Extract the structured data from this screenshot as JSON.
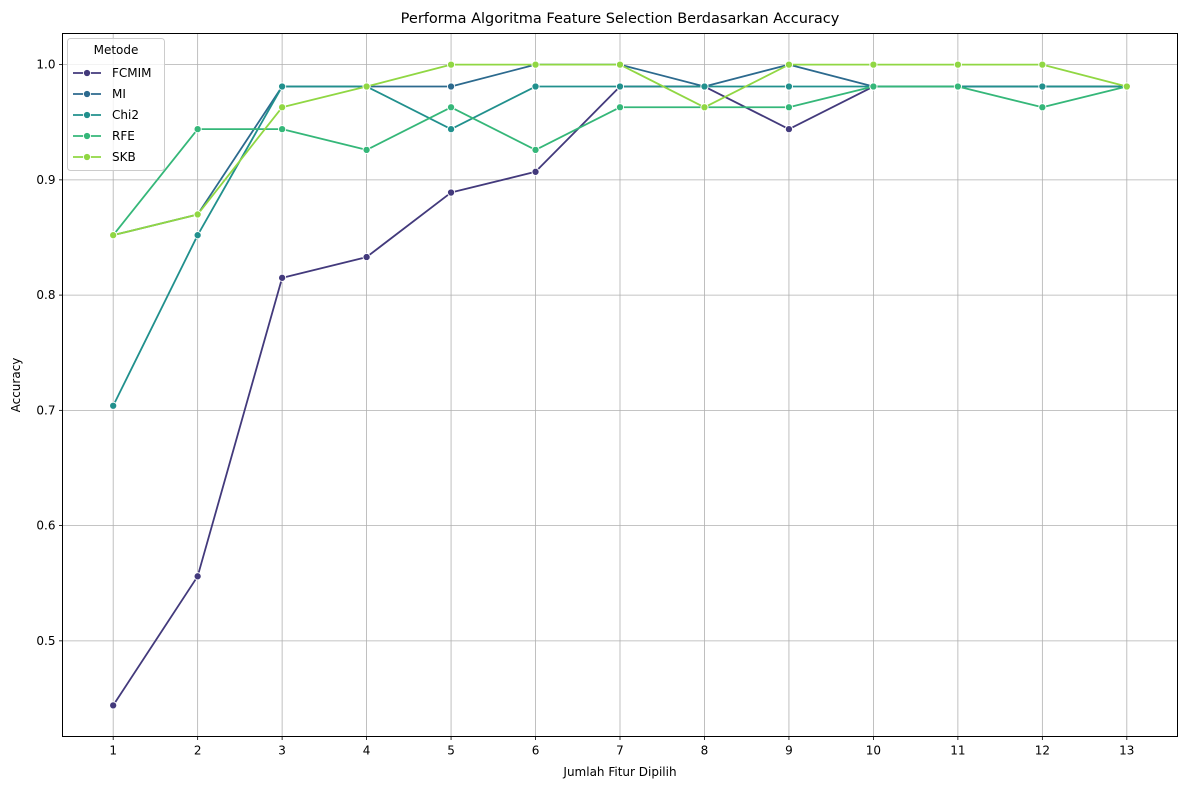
{
  "chart_data": {
    "type": "line",
    "title": "Performa Algoritma Feature Selection Berdasarkan Accuracy",
    "xlabel": "Jumlah Fitur Dipilih",
    "ylabel": "Accuracy",
    "x": [
      1,
      2,
      3,
      4,
      5,
      6,
      7,
      8,
      9,
      10,
      11,
      12,
      13
    ],
    "xlim": [
      0.4,
      13.6
    ],
    "ylim": [
      0.417,
      1.027
    ],
    "yticks": [
      0.5,
      0.6,
      0.7,
      0.8,
      0.9,
      1.0
    ],
    "ytick_labels": [
      "0.5",
      "0.6",
      "0.7",
      "0.8",
      "0.9",
      "1.0"
    ],
    "xtick_labels": [
      "1",
      "2",
      "3",
      "4",
      "5",
      "6",
      "7",
      "8",
      "9",
      "10",
      "11",
      "12",
      "13"
    ],
    "grid": true,
    "legend": {
      "title": "Metode",
      "placement": "top-left"
    },
    "series": [
      {
        "name": "FCMIM",
        "color": "#433a7c",
        "values": [
          0.444,
          0.556,
          0.815,
          0.833,
          0.889,
          0.907,
          0.981,
          0.981,
          0.944,
          0.981,
          0.981,
          0.981,
          0.981
        ]
      },
      {
        "name": "MI",
        "color": "#2c6a8e",
        "values": [
          0.852,
          0.87,
          0.981,
          0.981,
          0.981,
          1.0,
          1.0,
          0.981,
          1.0,
          0.981,
          0.981,
          0.981,
          0.981
        ]
      },
      {
        "name": "Chi2",
        "color": "#21908d",
        "values": [
          0.704,
          0.852,
          0.981,
          0.981,
          0.944,
          0.981,
          0.981,
          0.981,
          0.981,
          0.981,
          0.981,
          0.981,
          0.981
        ]
      },
      {
        "name": "RFE",
        "color": "#35b779",
        "values": [
          0.852,
          0.944,
          0.944,
          0.926,
          0.963,
          0.926,
          0.963,
          0.963,
          0.963,
          0.981,
          0.981,
          0.963,
          0.981
        ]
      },
      {
        "name": "SKB",
        "color": "#90d743",
        "values": [
          0.852,
          0.87,
          0.963,
          0.981,
          1.0,
          1.0,
          1.0,
          0.963,
          1.0,
          1.0,
          1.0,
          1.0,
          0.981
        ]
      }
    ]
  }
}
